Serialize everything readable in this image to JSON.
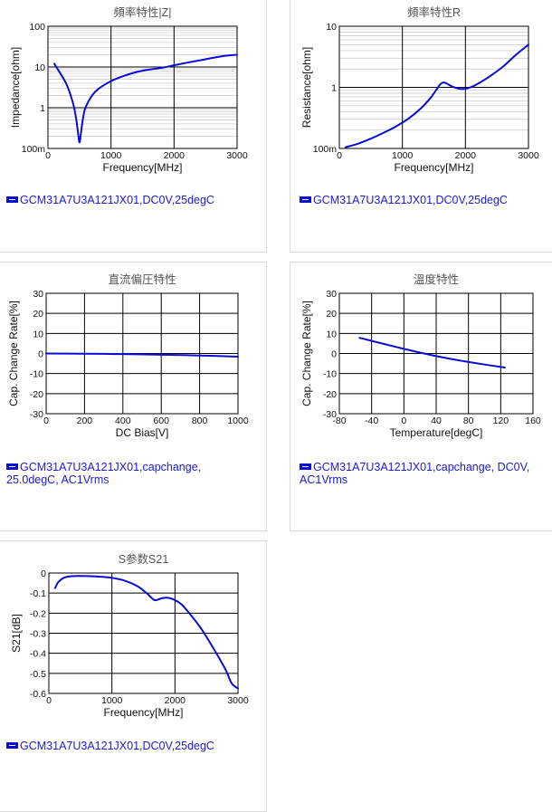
{
  "charts": [
    {
      "id": "impedance",
      "legend": "GCM31A7U3A121JX01,DC0V,25degC",
      "chart_data": {
        "type": "line",
        "title": "頻率特性|Z|",
        "xlabel": "Frequency[MHz]",
        "ylabel": "Impedance[ohm]",
        "xlim": [
          0,
          3000
        ],
        "ylim": [
          0.1,
          100
        ],
        "yscale": "log",
        "xticks": [
          0,
          1000,
          2000,
          3000
        ],
        "xtick_labels": [
          "0",
          "1000",
          "2000",
          "3000"
        ],
        "yticks": [
          0.1,
          1,
          10,
          100
        ],
        "ytick_labels": [
          "100m",
          "1",
          "10",
          "100"
        ],
        "grid": true,
        "legend_position": "bottom",
        "series": [
          {
            "color": "#0b0bd6",
            "x": [
              100,
              200,
              300,
              400,
              450,
              480,
              500,
              520,
              560,
              600,
              700,
              800,
              1000,
              1200,
              1400,
              1600,
              1800,
              2000,
              2200,
              2400,
              2600,
              2800,
              3000
            ],
            "y": [
              12,
              6.8,
              3.6,
              1.25,
              0.5,
              0.22,
              0.14,
              0.22,
              0.6,
              1.05,
              2.0,
              2.9,
              4.5,
              6.0,
              7.5,
              8.6,
              9.5,
              11.0,
              12.7,
              14.5,
              16.6,
              18.7,
              20
            ]
          }
        ]
      }
    },
    {
      "id": "resistance",
      "legend": "GCM31A7U3A121JX01,DC0V,25degC",
      "chart_data": {
        "type": "line",
        "title": "頻率特性R",
        "xlabel": "Frequency[MHz]",
        "ylabel": "Resistance[ohm]",
        "xlim": [
          0,
          3000
        ],
        "ylim": [
          0.1,
          10
        ],
        "yscale": "log",
        "xticks": [
          0,
          1000,
          2000,
          3000
        ],
        "xtick_labels": [
          "0",
          "1000",
          "2000",
          "3000"
        ],
        "yticks": [
          0.1,
          1,
          10
        ],
        "ytick_labels": [
          "100m",
          "1",
          "10"
        ],
        "grid": true,
        "legend_position": "bottom",
        "series": [
          {
            "color": "#0b0bd6",
            "x": [
              100,
              300,
              500,
              700,
              900,
              1100,
              1300,
              1450,
              1550,
              1600,
              1650,
              1700,
              1800,
              1900,
              2000,
              2100,
              2200,
              2400,
              2600,
              2800,
              3000
            ],
            "y": [
              0.105,
              0.12,
              0.145,
              0.18,
              0.23,
              0.31,
              0.46,
              0.68,
              0.95,
              1.12,
              1.2,
              1.16,
              1.02,
              0.95,
              0.95,
              1.02,
              1.15,
              1.55,
              2.2,
              3.4,
              5.0
            ]
          }
        ]
      }
    },
    {
      "id": "dcbias",
      "legend": "GCM31A7U3A121JX01,capchange, 25.0degC, AC1Vrms",
      "chart_data": {
        "type": "line",
        "title": "直流偏圧特性",
        "xlabel": "DC Bias[V]",
        "ylabel": "Cap. Change Rate[%]",
        "xlim": [
          0,
          1000
        ],
        "ylim": [
          -30,
          30
        ],
        "xticks": [
          0,
          200,
          400,
          600,
          800,
          1000
        ],
        "xtick_labels": [
          "0",
          "200",
          "400",
          "600",
          "800",
          "1000"
        ],
        "yticks": [
          -30,
          -20,
          -10,
          0,
          10,
          20,
          30
        ],
        "ytick_labels": [
          "-30",
          "-20",
          "-10",
          "0",
          "10",
          "20",
          "30"
        ],
        "grid": true,
        "legend_position": "bottom",
        "series": [
          {
            "color": "#0b0bd6",
            "x": [
              0,
              200,
              400,
              600,
              800,
              1000
            ],
            "y": [
              0,
              -0.1,
              -0.3,
              -0.6,
              -1.0,
              -1.6
            ]
          }
        ]
      }
    },
    {
      "id": "temperature",
      "legend": "GCM31A7U3A121JX01,capchange, DC0V, AC1Vrms",
      "chart_data": {
        "type": "line",
        "title": "溫度特性",
        "xlabel": "Temperature[degC]",
        "ylabel": "Cap. Change Rate[%]",
        "xlim": [
          -80,
          160
        ],
        "ylim": [
          -30,
          30
        ],
        "xticks": [
          -80,
          -40,
          0,
          40,
          80,
          120,
          160
        ],
        "xtick_labels": [
          "-80",
          "-40",
          "0",
          "40",
          "80",
          "120",
          "160"
        ],
        "yticks": [
          -30,
          -20,
          -10,
          0,
          10,
          20,
          30
        ],
        "ytick_labels": [
          "-30",
          "-20",
          "-10",
          "0",
          "10",
          "20",
          "30"
        ],
        "grid": true,
        "legend_position": "bottom",
        "series": [
          {
            "color": "#0b0bd6",
            "x": [
              -55,
              -25,
              0,
              25,
              50,
              75,
              100,
              125
            ],
            "y": [
              7.8,
              4.8,
              2.3,
              0,
              -2.1,
              -3.9,
              -5.5,
              -7.0
            ]
          }
        ]
      }
    },
    {
      "id": "s21",
      "legend": "GCM31A7U3A121JX01,DC0V,25degC",
      "chart_data": {
        "type": "line",
        "title": "S参数S21",
        "xlabel": "Frequency[MHz]",
        "ylabel": "S21[dB]",
        "xlim": [
          0,
          3000
        ],
        "ylim": [
          -0.6,
          0
        ],
        "xticks": [
          0,
          1000,
          2000,
          3000
        ],
        "xtick_labels": [
          "0",
          "1000",
          "2000",
          "3000"
        ],
        "yticks": [
          -0.6,
          -0.5,
          -0.4,
          -0.3,
          -0.2,
          -0.1,
          0
        ],
        "ytick_labels": [
          "-0.6",
          "-0.5",
          "-0.4",
          "-0.3",
          "-0.2",
          "-0.1",
          "0"
        ],
        "grid": true,
        "legend_position": "bottom",
        "series": [
          {
            "color": "#0b0bd6",
            "x": [
              100,
              150,
              250,
              400,
              600,
              800,
              1000,
              1200,
              1400,
              1550,
              1650,
              1700,
              1800,
              1900,
              2000,
              2100,
              2200,
              2400,
              2600,
              2800,
              2900,
              3000
            ],
            "y": [
              -0.075,
              -0.045,
              -0.022,
              -0.015,
              -0.015,
              -0.018,
              -0.024,
              -0.038,
              -0.065,
              -0.1,
              -0.13,
              -0.135,
              -0.125,
              -0.124,
              -0.135,
              -0.155,
              -0.19,
              -0.27,
              -0.37,
              -0.48,
              -0.55,
              -0.575
            ]
          }
        ]
      }
    }
  ]
}
